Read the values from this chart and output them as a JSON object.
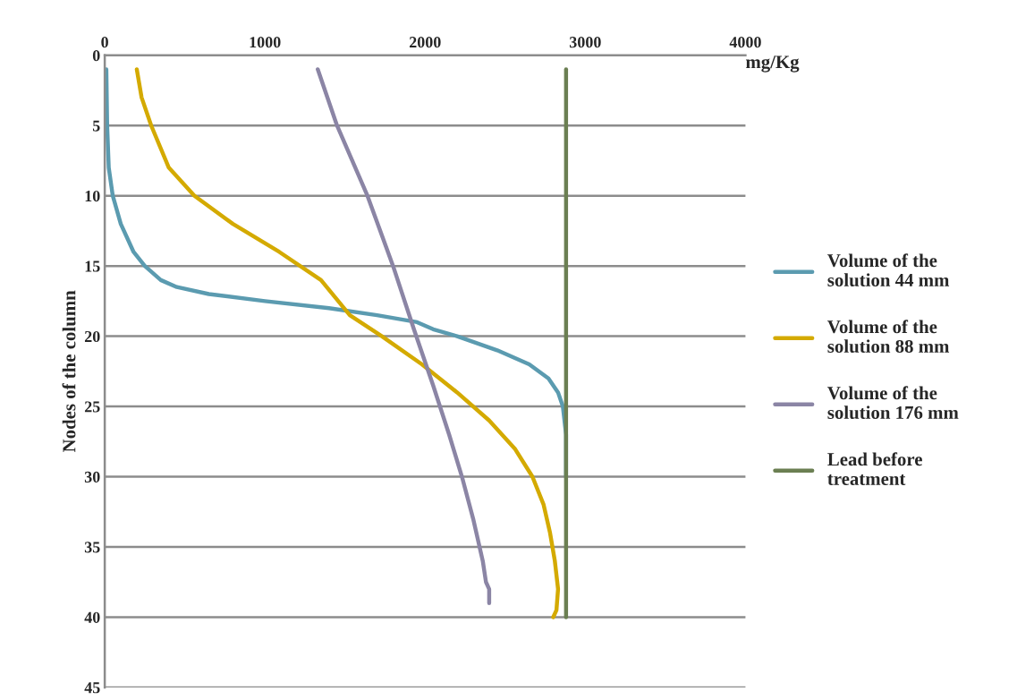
{
  "chart_data": {
    "type": "line",
    "xlabel": "mg/Kg",
    "ylabel": "Nodes of the column",
    "xlim": [
      0,
      4000
    ],
    "xticks": [
      0,
      1000,
      2000,
      3000,
      4000
    ],
    "ylim": [
      45,
      0
    ],
    "yticks": [
      0,
      5,
      10,
      15,
      20,
      25,
      30,
      35,
      40,
      45
    ],
    "grid": "y",
    "legend": "right",
    "marker": "none",
    "line_style": "solid",
    "series": [
      {
        "name": "Volume of the\nsolution 44 mm",
        "color": "#5b9bb0",
        "x": [
          10,
          15,
          25,
          50,
          100,
          180,
          250,
          350,
          450,
          650,
          1000,
          1400,
          1700,
          1950,
          2050,
          2200,
          2450,
          2650,
          2770,
          2830,
          2860,
          2880,
          2880
        ],
        "values": [
          1,
          5,
          8,
          10,
          12,
          14,
          15,
          16,
          16.5,
          17,
          17.5,
          18,
          18.5,
          19,
          19.5,
          20,
          21,
          22,
          23,
          24,
          25,
          27,
          30
        ]
      },
      {
        "name": "Volume of the\nsolution 88 mm",
        "color": "#d4aa00",
        "x": [
          200,
          230,
          290,
          400,
          560,
          800,
          1090,
          1350,
          1530,
          1730,
          1980,
          2200,
          2400,
          2560,
          2670,
          2740,
          2780,
          2810,
          2830,
          2820,
          2800
        ],
        "values": [
          1,
          3,
          5,
          8,
          10,
          12,
          14,
          16,
          18.5,
          20,
          22,
          24,
          26,
          28,
          30,
          32,
          34,
          36,
          38,
          39.5,
          40
        ]
      },
      {
        "name": "Volume of the\nsolution 176 mm",
        "color": "#8b85a5",
        "x": [
          1330,
          1450,
          1640,
          1800,
          1930,
          2050,
          2150,
          2230,
          2300,
          2360,
          2380,
          2400,
          2400
        ],
        "values": [
          1,
          5,
          10,
          15,
          19.5,
          23.5,
          27,
          30,
          33,
          36,
          37.5,
          38,
          39
        ]
      },
      {
        "name": "Lead before\ntreatment",
        "color": "#6b7f52",
        "x": [
          2880,
          2880
        ],
        "values": [
          1,
          40
        ]
      }
    ]
  }
}
